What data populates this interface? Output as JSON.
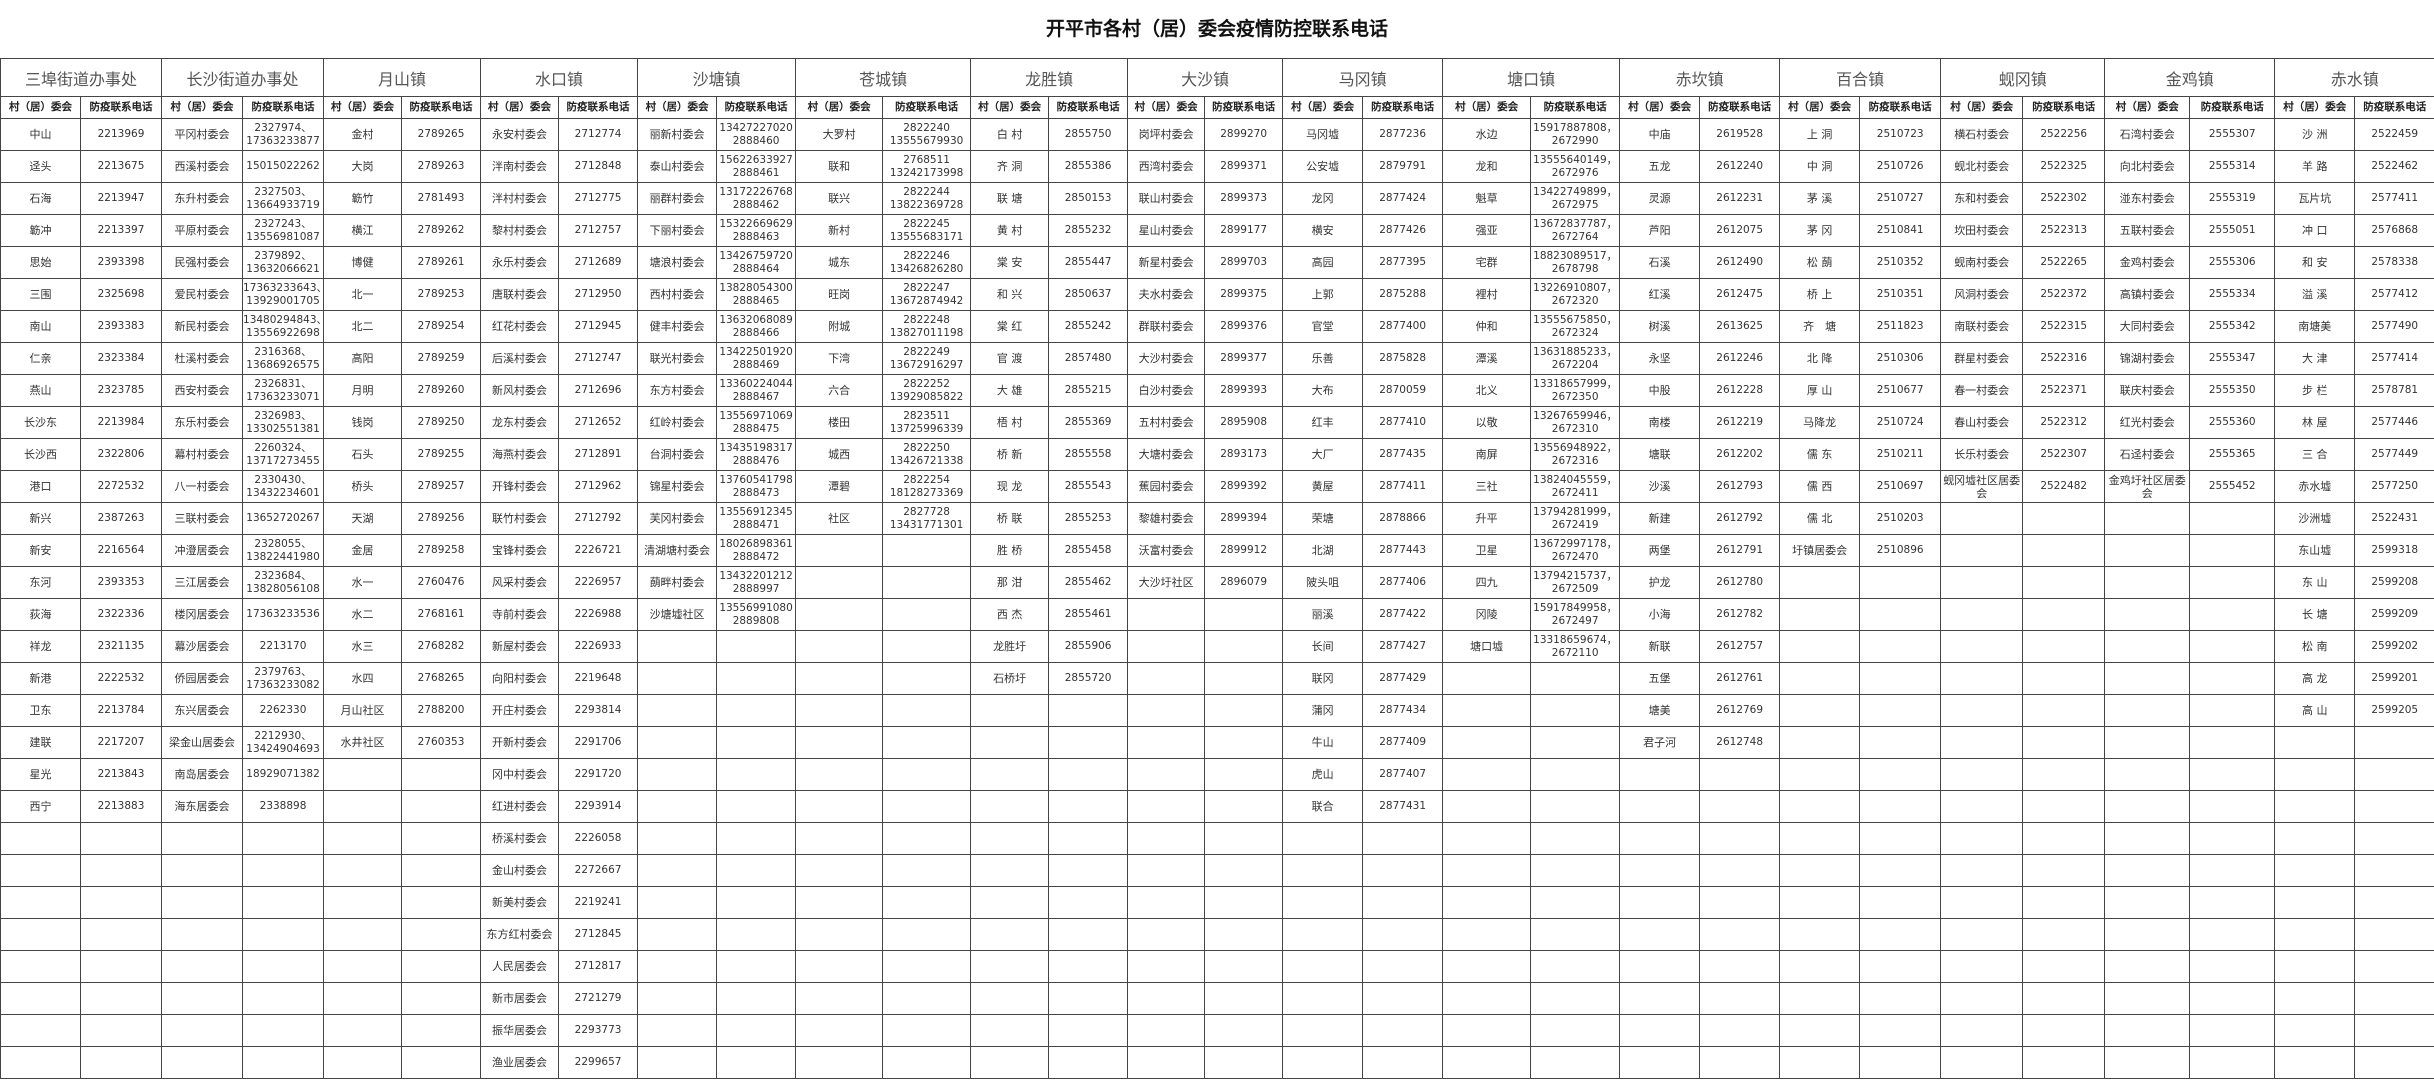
{
  "title": "开平市各村（居）委会疫情防控联系电话",
  "header_labels": {
    "committee": "村（居）委会",
    "phone": "防疫联系电话"
  },
  "towns": [
    {
      "name": "三埠街道办事处",
      "rows": [
        [
          "中山",
          "2213969"
        ],
        [
          "迳头",
          "2213675"
        ],
        [
          "石海",
          "2213947"
        ],
        [
          "簕冲",
          "2213397"
        ],
        [
          "思始",
          "2393398"
        ],
        [
          "三围",
          "2325698"
        ],
        [
          "南山",
          "2393383"
        ],
        [
          "仁亲",
          "2323384"
        ],
        [
          "燕山",
          "2323785"
        ],
        [
          "长沙东",
          "2213984"
        ],
        [
          "长沙西",
          "2322806"
        ],
        [
          "港口",
          "2272532"
        ],
        [
          "新兴",
          "2387263"
        ],
        [
          "新安",
          "2216564"
        ],
        [
          "东河",
          "2393353"
        ],
        [
          "荻海",
          "2322336"
        ],
        [
          "祥龙",
          "2321135"
        ],
        [
          "新港",
          "2222532"
        ],
        [
          "卫东",
          "2213784"
        ],
        [
          "建联",
          "2217207"
        ],
        [
          "星光",
          "2213843"
        ],
        [
          "西宁",
          "2213883"
        ]
      ]
    },
    {
      "name": "长沙街道办事处",
      "rows": [
        [
          "平冈村委会",
          "2327974、\n17363233877"
        ],
        [
          "西溪村委会",
          "15015022262"
        ],
        [
          "东升村委会",
          "2327503、\n13664933719"
        ],
        [
          "平原村委会",
          "2327243、\n13556981087"
        ],
        [
          "民强村委会",
          "2379892、\n13632066621"
        ],
        [
          "爱民村委会",
          "17363233643、\n13929001705"
        ],
        [
          "新民村委会",
          "13480294843、\n13556922698"
        ],
        [
          "杜溪村委会",
          "2316368、\n13686926575"
        ],
        [
          "西安村委会",
          "2326831、\n17363233071"
        ],
        [
          "东乐村委会",
          "2326983、\n13302551381"
        ],
        [
          "幕村村委会",
          "2260324、\n13717273455"
        ],
        [
          "八一村委会",
          "2330430、\n13432234601"
        ],
        [
          "三联村委会",
          "13652720267"
        ],
        [
          "冲澄居委会",
          "2328055、\n13822441980"
        ],
        [
          "三江居委会",
          "2323684、\n13828056108"
        ],
        [
          "楼冈居委会",
          "17363233536"
        ],
        [
          "幕沙居委会",
          "2213170"
        ],
        [
          "侨园居委会",
          "2379763、\n17363233082"
        ],
        [
          "东兴居委会",
          "2262330"
        ],
        [
          "梁金山居委会",
          "2212930、\n13424904693"
        ],
        [
          "南岛居委会",
          "18929071382"
        ],
        [
          "海东居委会",
          "2338898"
        ]
      ]
    },
    {
      "name": "月山镇",
      "rows": [
        [
          "金村",
          "2789265"
        ],
        [
          "大岗",
          "2789263"
        ],
        [
          "簕竹",
          "2781493"
        ],
        [
          "横江",
          "2789262"
        ],
        [
          "博健",
          "2789261"
        ],
        [
          "北一",
          "2789253"
        ],
        [
          "北二",
          "2789254"
        ],
        [
          "高阳",
          "2789259"
        ],
        [
          "月明",
          "2789260"
        ],
        [
          "钱岗",
          "2789250"
        ],
        [
          "石头",
          "2789255"
        ],
        [
          "桥头",
          "2789257"
        ],
        [
          "天湖",
          "2789256"
        ],
        [
          "金居",
          "2789258"
        ],
        [
          "水一",
          "2760476"
        ],
        [
          "水二",
          "2768161"
        ],
        [
          "水三",
          "2768282"
        ],
        [
          "水四",
          "2768265"
        ],
        [
          "月山社区",
          "2788200"
        ],
        [
          "水井社区",
          "2760353"
        ]
      ]
    },
    {
      "name": "水口镇",
      "rows": [
        [
          "永安村委会",
          "2712774"
        ],
        [
          "泮南村委会",
          "2712848"
        ],
        [
          "泮村村委会",
          "2712775"
        ],
        [
          "黎村村委会",
          "2712757"
        ],
        [
          "永乐村委会",
          "2712689"
        ],
        [
          "唐联村委会",
          "2712950"
        ],
        [
          "红花村委会",
          "2712945"
        ],
        [
          "后溪村委会",
          "2712747"
        ],
        [
          "新风村委会",
          "2712696"
        ],
        [
          "龙东村委会",
          "2712652"
        ],
        [
          "海燕村委会",
          "2712891"
        ],
        [
          "开锋村委会",
          "2712962"
        ],
        [
          "联竹村委会",
          "2712792"
        ],
        [
          "宝锋村委会",
          "2226721"
        ],
        [
          "风采村委会",
          "2226957"
        ],
        [
          "寺前村委会",
          "2226988"
        ],
        [
          "新屋村委会",
          "2226933"
        ],
        [
          "向阳村委会",
          "2219648"
        ],
        [
          "开庄村委会",
          "2293814"
        ],
        [
          "开新村委会",
          "2291706"
        ],
        [
          "冈中村委会",
          "2291720"
        ],
        [
          "红进村委会",
          "2293914"
        ],
        [
          "桥溪村委会",
          "2226058"
        ],
        [
          "金山村委会",
          "2272667"
        ],
        [
          "新美村委会",
          "2219241"
        ],
        [
          "东方红村委会",
          "2712845"
        ],
        [
          "人民居委会",
          "2712817"
        ],
        [
          "新市居委会",
          "2721279"
        ],
        [
          "振华居委会",
          "2293773"
        ],
        [
          "渔业居委会",
          "2299657"
        ]
      ]
    },
    {
      "name": "沙塘镇",
      "rows": [
        [
          "丽新村委会",
          "13427227020\n2888460"
        ],
        [
          "泰山村委会",
          "15622633927\n2888461"
        ],
        [
          "丽群村委会",
          "13172226768\n2888462"
        ],
        [
          "下丽村委会",
          "15322669629\n2888463"
        ],
        [
          "塘浪村委会",
          "13426759720\n2888464"
        ],
        [
          "西村村委会",
          "13828054300\n2888465"
        ],
        [
          "健丰村委会",
          "13632068089\n2888466"
        ],
        [
          "联光村委会",
          "13422501920\n2888469"
        ],
        [
          "东方村委会",
          "13360224044\n2888467"
        ],
        [
          "红岭村委会",
          "13556971069\n2888475"
        ],
        [
          "台洞村委会",
          "13435198317\n2888476"
        ],
        [
          "锦星村委会",
          "13760541798\n2888473"
        ],
        [
          "芙冈村委会",
          "13556912345\n2888471"
        ],
        [
          "清湖塘村委会",
          "18026898361\n2888472"
        ],
        [
          "蓢畔村委会",
          "13432201212\n2888997"
        ],
        [
          "沙塘墟社区",
          "13556991080\n2889808"
        ]
      ]
    },
    {
      "name": "苍城镇",
      "rows": [
        [
          "大罗村",
          "2822240\n13555679930"
        ],
        [
          "联和",
          "2768511\n13242173998"
        ],
        [
          "联兴",
          "2822244\n13822369728"
        ],
        [
          "新村",
          "2822245\n13555683171"
        ],
        [
          "城东",
          "2822246\n13426826280"
        ],
        [
          "旺岗",
          "2822247\n13672874942"
        ],
        [
          "附城",
          "2822248\n13827011198"
        ],
        [
          "下湾",
          "2822249\n13672916297"
        ],
        [
          "六合",
          "2822252\n13929085822"
        ],
        [
          "楼田",
          "2823511\n13725996339"
        ],
        [
          "城西",
          "2822250\n13426721338"
        ],
        [
          "潭碧",
          "2822254\n18128273369"
        ],
        [
          "社区",
          "2827728\n13431771301"
        ]
      ]
    },
    {
      "name": "龙胜镇",
      "rows": [
        [
          "白 村",
          "2855750"
        ],
        [
          "齐 洞",
          "2855386"
        ],
        [
          "联 塘",
          "2850153"
        ],
        [
          "黄 村",
          "2855232"
        ],
        [
          "棠 安",
          "2855447"
        ],
        [
          "和 兴",
          "2850637"
        ],
        [
          "棠 红",
          "2855242"
        ],
        [
          "官 渡",
          "2857480"
        ],
        [
          "大 雄",
          "2855215"
        ],
        [
          "梧 村",
          "2855369"
        ],
        [
          "桥 新",
          "2855558"
        ],
        [
          "现 龙",
          "2855543"
        ],
        [
          "桥 联",
          "2855253"
        ],
        [
          "胜 桥",
          "2855458"
        ],
        [
          "那 泔",
          "2855462"
        ],
        [
          "西 杰",
          "2855461"
        ],
        [
          "龙胜圩",
          "2855906"
        ],
        [
          "石桥圩",
          "2855720"
        ]
      ]
    },
    {
      "name": "大沙镇",
      "rows": [
        [
          "岗坪村委会",
          "2899270"
        ],
        [
          "西湾村委会",
          "2899371"
        ],
        [
          "联山村委会",
          "2899373"
        ],
        [
          "星山村委会",
          "2899177"
        ],
        [
          "新星村委会",
          "2899703"
        ],
        [
          "夫水村委会",
          "2899375"
        ],
        [
          "群联村委会",
          "2899376"
        ],
        [
          "大沙村委会",
          "2899377"
        ],
        [
          "白沙村委会",
          "2899393"
        ],
        [
          "五村村委会",
          "2895908"
        ],
        [
          "大塘村委会",
          "2893173"
        ],
        [
          "蕉园村委会",
          "2899392"
        ],
        [
          "黎雄村委会",
          "2899394"
        ],
        [
          "沃富村委会",
          "2899912"
        ],
        [
          "大沙圩社区",
          "2896079"
        ]
      ]
    },
    {
      "name": "马冈镇",
      "rows": [
        [
          "马冈墟",
          "2877236"
        ],
        [
          "公安墟",
          "2879791"
        ],
        [
          "龙冈",
          "2877424"
        ],
        [
          "横安",
          "2877426"
        ],
        [
          "高园",
          "2877395"
        ],
        [
          "上郭",
          "2875288"
        ],
        [
          "官堂",
          "2877400"
        ],
        [
          "乐善",
          "2875828"
        ],
        [
          "大布",
          "2870059"
        ],
        [
          "红丰",
          "2877410"
        ],
        [
          "大厂",
          "2877435"
        ],
        [
          "黄屋",
          "2877411"
        ],
        [
          "荣塘",
          "2878866"
        ],
        [
          "北湖",
          "2877443"
        ],
        [
          "陂头咀",
          "2877406"
        ],
        [
          "丽溪",
          "2877422"
        ],
        [
          "长间",
          "2877427"
        ],
        [
          "联冈",
          "2877429"
        ],
        [
          "蒲冈",
          "2877434"
        ],
        [
          "牛山",
          "2877409"
        ],
        [
          "虎山",
          "2877407"
        ],
        [
          "联合",
          "2877431"
        ]
      ]
    },
    {
      "name": "塘口镇",
      "rows": [
        [
          "水边",
          "15917887808，\n2672990"
        ],
        [
          "龙和",
          "13555640149，\n2672976"
        ],
        [
          "魁草",
          "13422749899，\n2672975"
        ],
        [
          "强亚",
          "13672837787，\n2672764"
        ],
        [
          "宅群",
          "18823089517，\n2678798"
        ],
        [
          "裡村",
          "13226910807，\n2672320"
        ],
        [
          "仲和",
          "13555675850，\n2672324"
        ],
        [
          "潭溪",
          "13631885233，\n2672204"
        ],
        [
          "北义",
          "13318657999，\n2672350"
        ],
        [
          "以敬",
          "13267659946，\n2672310"
        ],
        [
          "南屏",
          "13556948922，\n2672316"
        ],
        [
          "三社",
          "13824045559，\n2672411"
        ],
        [
          "升平",
          "13794281999，\n2672419"
        ],
        [
          "卫星",
          "13672997178，\n2672470"
        ],
        [
          "四九",
          "13794215737，\n2672509"
        ],
        [
          "冈陵",
          "15917849958，\n2672497"
        ],
        [
          "塘口墟",
          "13318659674，\n2672110"
        ]
      ]
    },
    {
      "name": "赤坎镇",
      "rows": [
        [
          "中庙",
          "2619528"
        ],
        [
          "五龙",
          "2612240"
        ],
        [
          "灵源",
          "2612231"
        ],
        [
          "芦阳",
          "2612075"
        ],
        [
          "石溪",
          "2612490"
        ],
        [
          "红溪",
          "2612475"
        ],
        [
          "树溪",
          "2613625"
        ],
        [
          "永坚",
          "2612246"
        ],
        [
          "中股",
          "2612228"
        ],
        [
          "南楼",
          "2612219"
        ],
        [
          "塘联",
          "2612202"
        ],
        [
          "沙溪",
          "2612793"
        ],
        [
          "新建",
          "2612792"
        ],
        [
          "两堡",
          "2612791"
        ],
        [
          "护龙",
          "2612780"
        ],
        [
          "小海",
          "2612782"
        ],
        [
          "新联",
          "2612757"
        ],
        [
          "五堡",
          "2612761"
        ],
        [
          "塘美",
          "2612769"
        ],
        [
          "君子河",
          "2612748"
        ]
      ]
    },
    {
      "name": "百合镇",
      "rows": [
        [
          "上 洞",
          "2510723"
        ],
        [
          "中 洞",
          "2510726"
        ],
        [
          "茅 溪",
          "2510727"
        ],
        [
          "茅 冈",
          "2510841"
        ],
        [
          "松 蓢",
          "2510352"
        ],
        [
          "桥 上",
          "2510351"
        ],
        [
          "齐　塘",
          "2511823"
        ],
        [
          "北 降",
          "2510306"
        ],
        [
          "厚 山",
          "2510677"
        ],
        [
          "马降龙",
          "2510724"
        ],
        [
          "儒 东",
          "2510211"
        ],
        [
          "儒 西",
          "2510697"
        ],
        [
          "儒 北",
          "2510203"
        ],
        [
          "圩镇居委会",
          "2510896"
        ]
      ]
    },
    {
      "name": "蚬冈镇",
      "rows": [
        [
          "横石村委会",
          "2522256"
        ],
        [
          "蚬北村委会",
          "2522325"
        ],
        [
          "东和村委会",
          "2522302"
        ],
        [
          "坎田村委会",
          "2522313"
        ],
        [
          "蚬南村委会",
          "2522265"
        ],
        [
          "风洞村委会",
          "2522372"
        ],
        [
          "南联村委会",
          "2522315"
        ],
        [
          "群星村委会",
          "2522316"
        ],
        [
          "春一村委会",
          "2522371"
        ],
        [
          "春山村委会",
          "2522312"
        ],
        [
          "长乐村委会",
          "2522307"
        ],
        [
          "蚬冈墟社区居委会",
          "2522482"
        ]
      ]
    },
    {
      "name": "金鸡镇",
      "rows": [
        [
          "石湾村委会",
          "2555307"
        ],
        [
          "向北村委会",
          "2555314"
        ],
        [
          "湴东村委会",
          "2555319"
        ],
        [
          "五联村委会",
          "2555051"
        ],
        [
          "金鸡村委会",
          "2555306"
        ],
        [
          "高镇村委会",
          "2555334"
        ],
        [
          "大同村委会",
          "2555342"
        ],
        [
          "锦湖村委会",
          "2555347"
        ],
        [
          "联庆村委会",
          "2555350"
        ],
        [
          "红光村委会",
          "2555360"
        ],
        [
          "石迳村委会",
          "2555365"
        ],
        [
          "金鸡圩社区居委会",
          "2555452"
        ]
      ]
    },
    {
      "name": "赤水镇",
      "rows": [
        [
          "沙 洲",
          "2522459"
        ],
        [
          "羊 路",
          "2522462"
        ],
        [
          "瓦片坑",
          "2577411"
        ],
        [
          "冲 口",
          "2576868"
        ],
        [
          "和 安",
          "2578338"
        ],
        [
          "溢 溪",
          "2577412"
        ],
        [
          "南塘美",
          "2577490"
        ],
        [
          "大 津",
          "2577414"
        ],
        [
          "步 栏",
          "2578781"
        ],
        [
          "林 屋",
          "2577446"
        ],
        [
          "三 合",
          "2577449"
        ],
        [
          "赤水墟",
          "2577250"
        ],
        [
          "沙洲墟",
          "2522431"
        ],
        [
          "东山墟",
          "2599318"
        ],
        [
          "东 山",
          "2599208"
        ],
        [
          "长 塘",
          "2599209"
        ],
        [
          "松 南",
          "2599202"
        ],
        [
          "高 龙",
          "2599201"
        ],
        [
          "高 山",
          "2599205"
        ]
      ]
    }
  ]
}
